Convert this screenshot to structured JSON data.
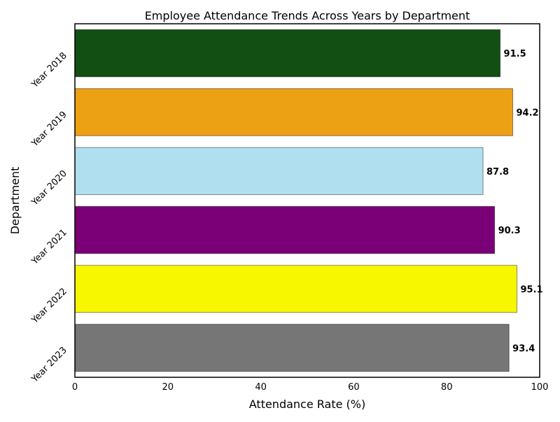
{
  "chart_data": {
    "type": "bar",
    "orientation": "horizontal",
    "title": "Employee Attendance Trends Across Years by Department",
    "xlabel": "Attendance Rate (%)",
    "ylabel": "Department",
    "xlim": [
      0,
      100
    ],
    "xticks": [
      "0",
      "20",
      "40",
      "60",
      "80",
      "100"
    ],
    "categories": [
      "Year 2018",
      "Year 2019",
      "Year 2020",
      "Year 2021",
      "Year 2022",
      "Year 2023"
    ],
    "values": [
      91.5,
      94.2,
      87.8,
      90.3,
      95.1,
      93.4
    ],
    "value_labels": [
      "91.5",
      "94.2",
      "87.8",
      "90.3",
      "95.1",
      "93.4"
    ],
    "colors": [
      "#114f12",
      "#eca014",
      "#b0e0ef",
      "#7b0078",
      "#f7f700",
      "#767676"
    ],
    "grid": false,
    "legend": "none"
  }
}
